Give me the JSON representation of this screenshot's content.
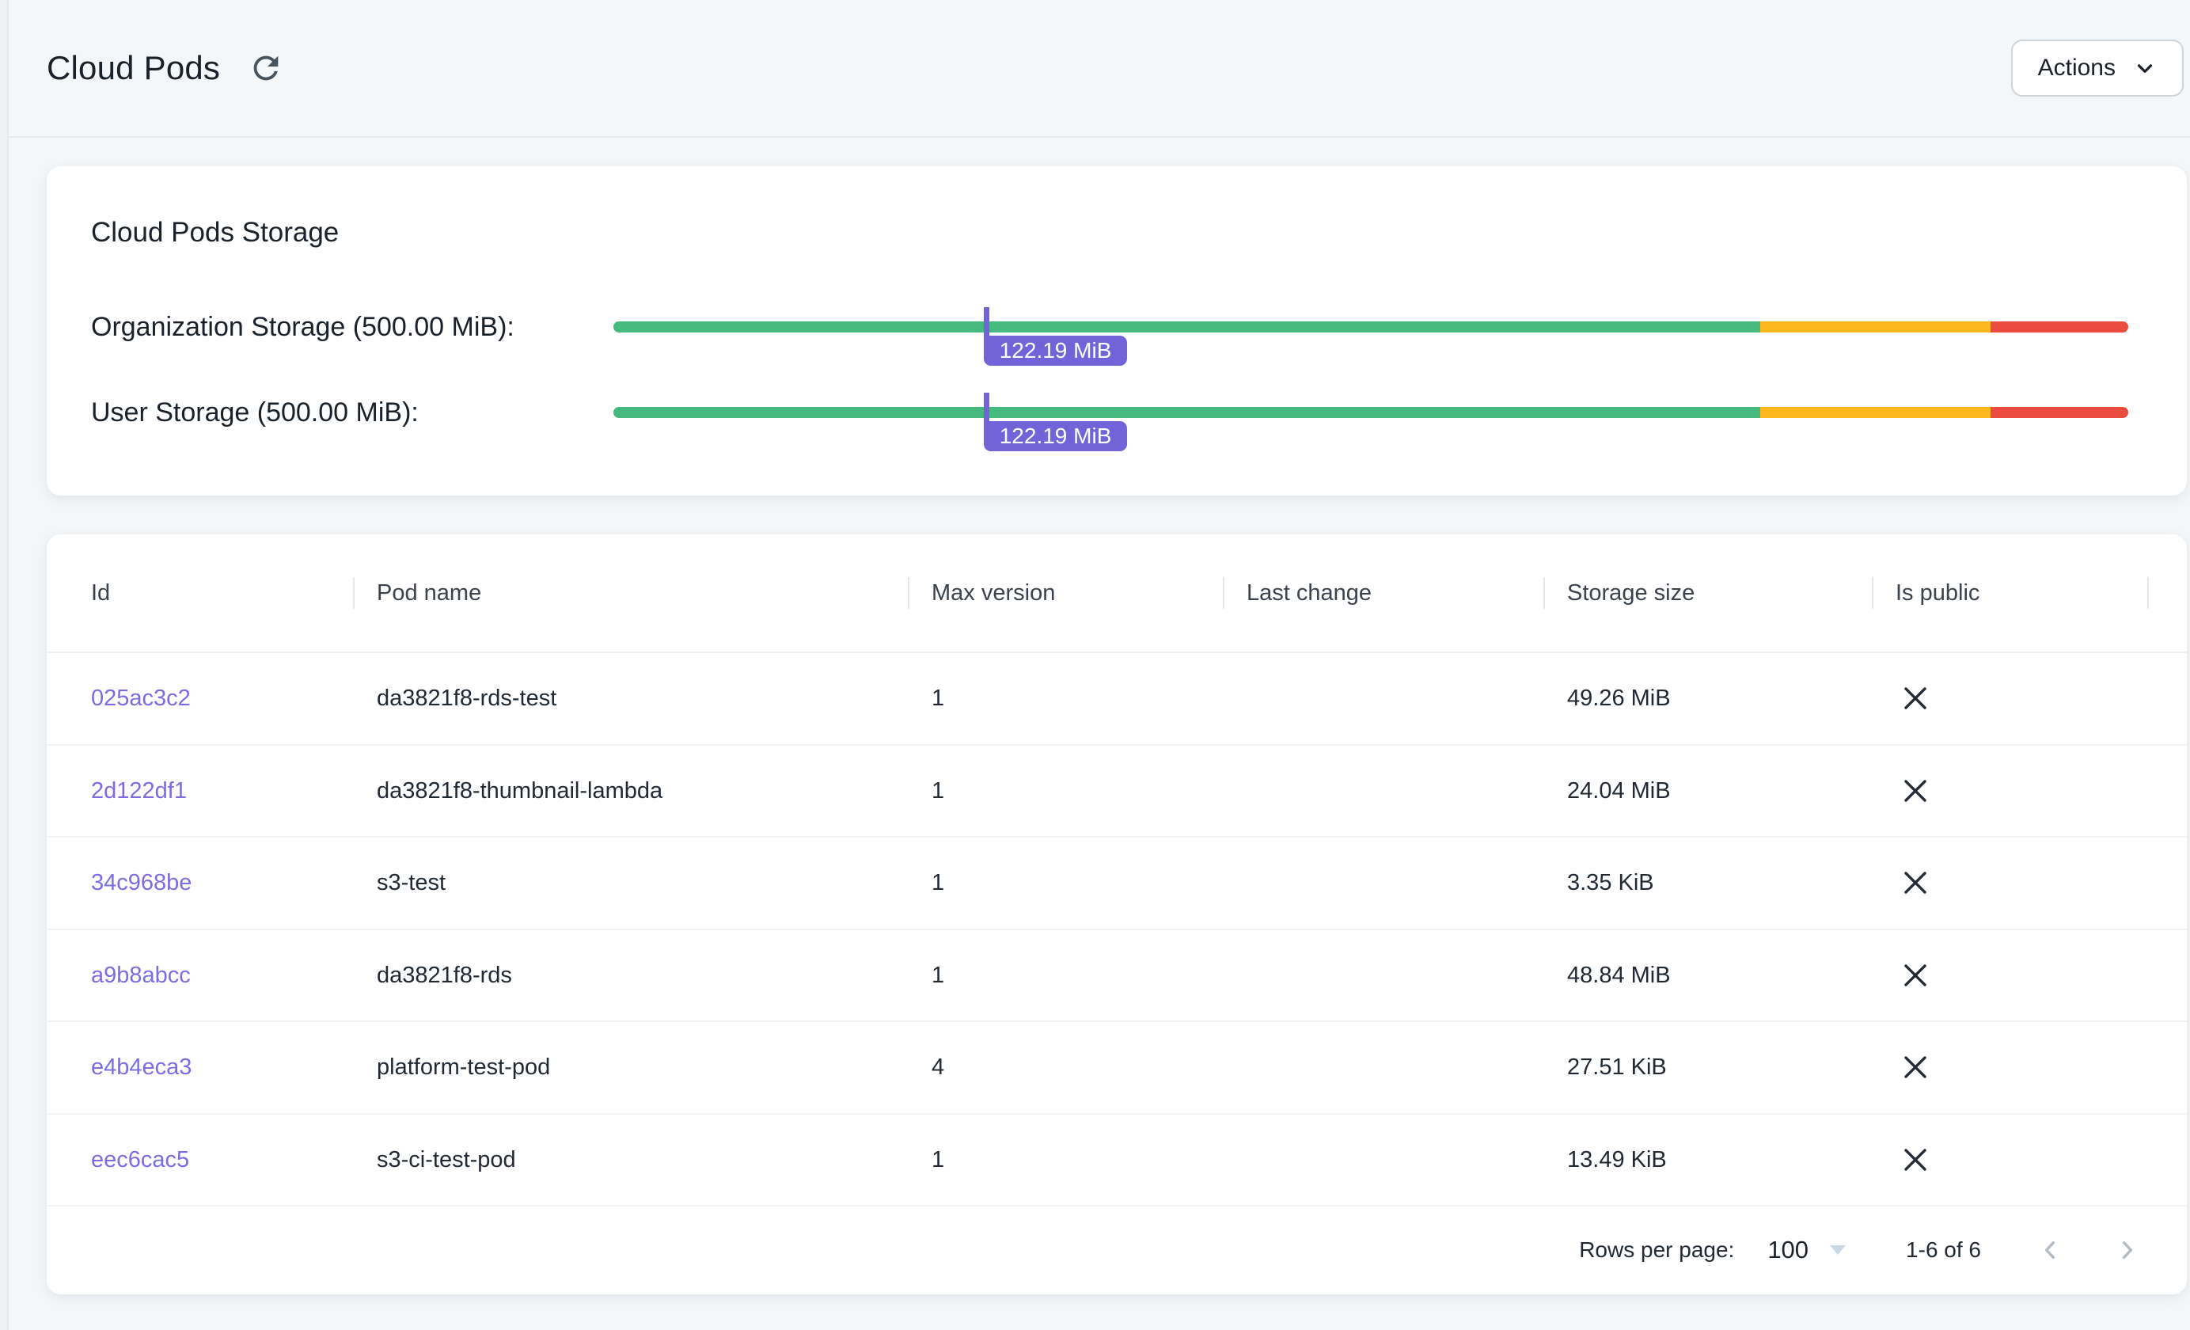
{
  "page": {
    "title": "Cloud Pods"
  },
  "header": {
    "actions_label": "Actions"
  },
  "storage_card": {
    "title": "Cloud Pods Storage",
    "bars": [
      {
        "label": "Organization Storage (500.00 MiB):",
        "used_label": "122.19 MiB",
        "used_mib": 122.19,
        "limit_mib": 500.0,
        "segments": {
          "green_pct": 75.7,
          "amber_pct": 15.2,
          "red_pct": 9.1
        }
      },
      {
        "label": "User Storage (500.00 MiB):",
        "used_label": "122.19 MiB",
        "used_mib": 122.19,
        "limit_mib": 500.0,
        "segments": {
          "green_pct": 75.7,
          "amber_pct": 15.2,
          "red_pct": 9.1
        }
      }
    ]
  },
  "table": {
    "columns": {
      "id": "Id",
      "pod_name": "Pod name",
      "max_version": "Max version",
      "last_change": "Last change",
      "storage_size": "Storage size",
      "is_public": "Is public"
    },
    "rows": [
      {
        "id": "025ac3c2",
        "pod_name": "da3821f8-rds-test",
        "max_version": "1",
        "last_change": "",
        "storage_size": "49.26 MiB",
        "is_public": false
      },
      {
        "id": "2d122df1",
        "pod_name": "da3821f8-thumbnail-lambda",
        "max_version": "1",
        "last_change": "",
        "storage_size": "24.04 MiB",
        "is_public": false
      },
      {
        "id": "34c968be",
        "pod_name": "s3-test",
        "max_version": "1",
        "last_change": "",
        "storage_size": "3.35 KiB",
        "is_public": false
      },
      {
        "id": "a9b8abcc",
        "pod_name": "da3821f8-rds",
        "max_version": "1",
        "last_change": "",
        "storage_size": "48.84 MiB",
        "is_public": false
      },
      {
        "id": "e4b4eca3",
        "pod_name": "platform-test-pod",
        "max_version": "4",
        "last_change": "",
        "storage_size": "27.51 KiB",
        "is_public": false
      },
      {
        "id": "eec6cac5",
        "pod_name": "s3-ci-test-pod",
        "max_version": "1",
        "last_change": "",
        "storage_size": "13.49 KiB",
        "is_public": false
      }
    ],
    "pagination": {
      "rows_per_page_label": "Rows per page:",
      "rows_per_page_value": "100",
      "range_label": "1-6 of 6"
    }
  },
  "colors": {
    "green": "#46b97f",
    "amber": "#fcb71f",
    "red": "#ea4b3f",
    "purple": "#7363d9",
    "link": "#7b6ce4"
  }
}
